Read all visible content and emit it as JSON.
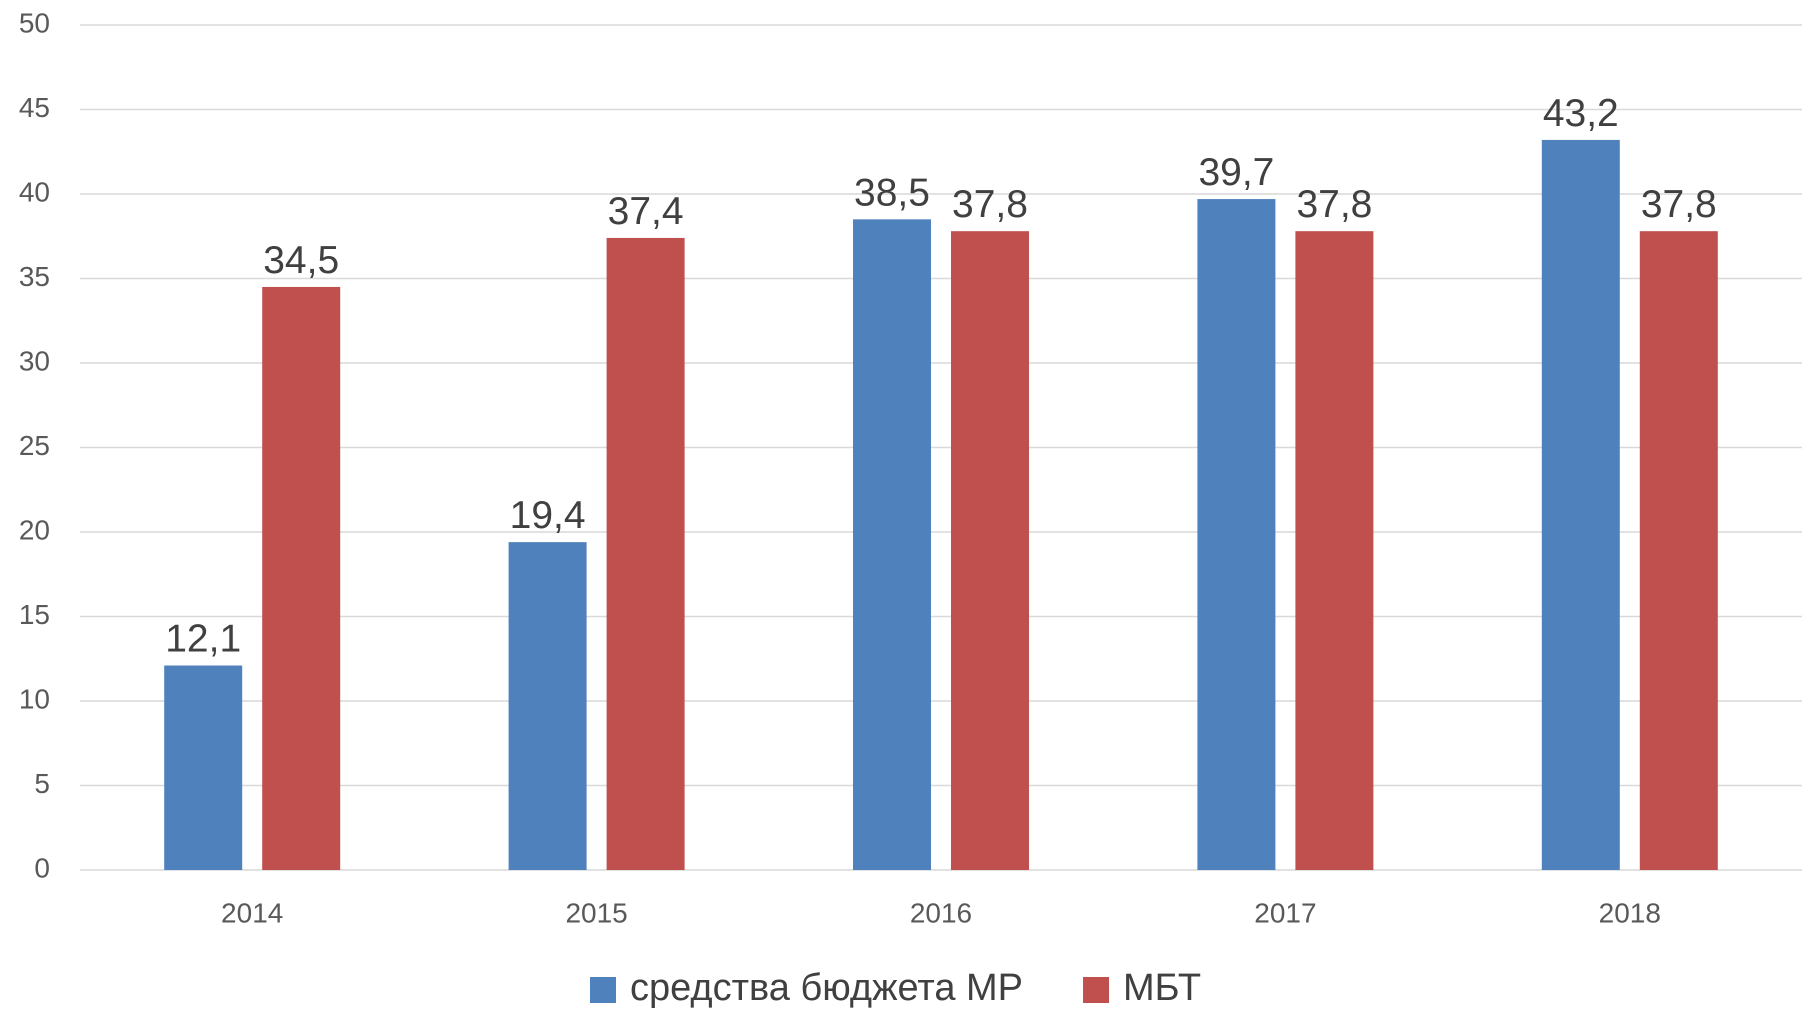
{
  "chart_data": {
    "type": "bar",
    "categories": [
      "2014",
      "2015",
      "2016",
      "2017",
      "2018"
    ],
    "series": [
      {
        "name": "средства бюджета МР",
        "color": "#4f81bd",
        "values": [
          12.1,
          19.4,
          38.5,
          39.7,
          43.2
        ],
        "value_labels": [
          "12,1",
          "19,4",
          "38,5",
          "39,7",
          "43,2"
        ]
      },
      {
        "name": "МБТ",
        "color": "#c0504d",
        "values": [
          34.5,
          37.4,
          37.8,
          37.8,
          37.8
        ],
        "value_labels": [
          "34,5",
          "37,4",
          "37,8",
          "37,8",
          "37,8"
        ]
      }
    ],
    "ylim": [
      0,
      50
    ],
    "yticks": [
      0,
      5,
      10,
      15,
      20,
      25,
      30,
      35,
      40,
      45,
      50
    ],
    "grid": true,
    "legend": "bottom"
  }
}
